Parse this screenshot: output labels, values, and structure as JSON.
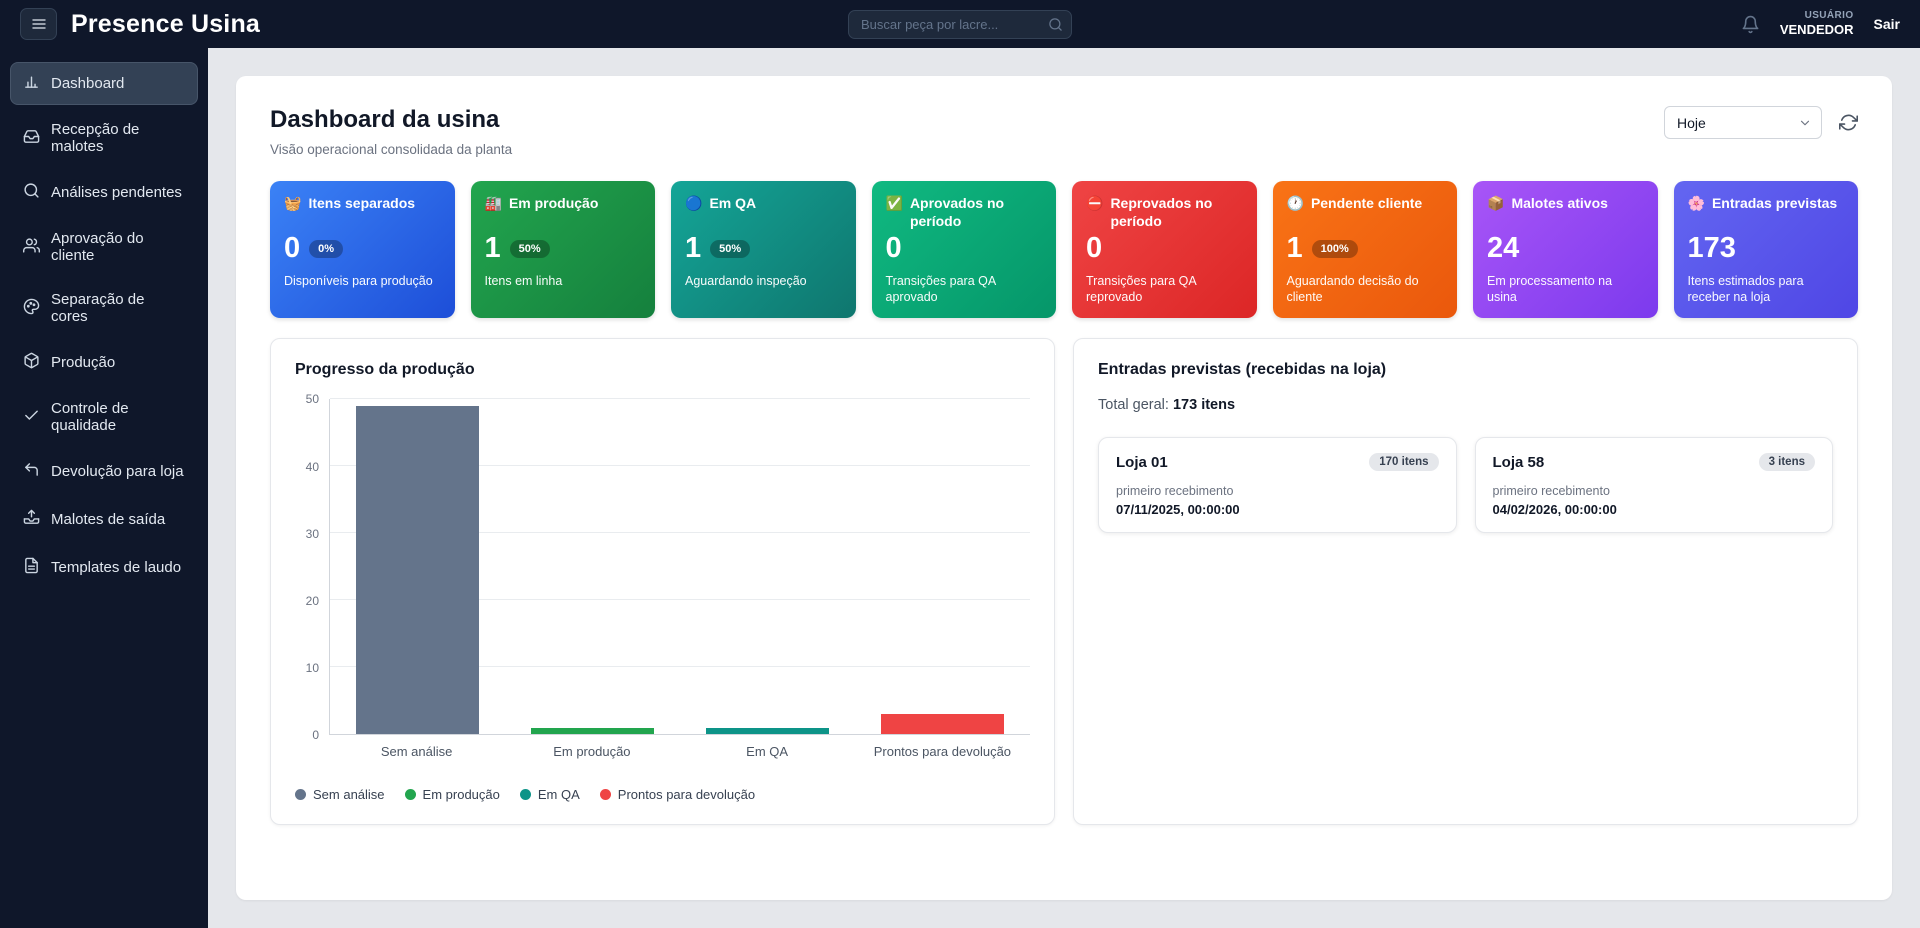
{
  "header": {
    "app_title": "Presence Usina",
    "search_placeholder": "Buscar peça por lacre...",
    "user_label": "USUÁRIO",
    "user_name": "VENDEDOR",
    "logout_label": "Sair"
  },
  "sidebar": {
    "items": [
      {
        "label": "Dashboard",
        "icon": "dashboard-icon",
        "active": true
      },
      {
        "label": "Recepção de malotes",
        "icon": "inbox-icon",
        "active": false
      },
      {
        "label": "Análises pendentes",
        "icon": "search-icon",
        "active": false
      },
      {
        "label": "Aprovação do cliente",
        "icon": "users-icon",
        "active": false
      },
      {
        "label": "Separação de cores",
        "icon": "palette-icon",
        "active": false
      },
      {
        "label": "Produção",
        "icon": "package-icon",
        "active": false
      },
      {
        "label": "Controle de qualidade",
        "icon": "check-icon",
        "active": false
      },
      {
        "label": "Devolução para loja",
        "icon": "return-icon",
        "active": false
      },
      {
        "label": "Malotes de saída",
        "icon": "outbox-icon",
        "active": false
      },
      {
        "label": "Templates de laudo",
        "icon": "document-icon",
        "active": false
      }
    ]
  },
  "main": {
    "title": "Dashboard da usina",
    "subtitle": "Visão operacional consolidada da planta",
    "period_select_value": "Hoje",
    "stat_cards": [
      {
        "icon": "🧺",
        "icon_name": "basket-icon",
        "label": "Itens separados",
        "value": "0",
        "badge": "0%",
        "description": "Disponíveis para produção",
        "color_from": "#3b82f6",
        "color_to": "#1d4ed8"
      },
      {
        "icon": "🏭",
        "icon_name": "factory-icon",
        "label": "Em produção",
        "value": "1",
        "badge": "50%",
        "description": "Itens em linha",
        "color_from": "#22a54e",
        "color_to": "#15803d"
      },
      {
        "icon": "🔵",
        "icon_name": "qa-circle-icon",
        "label": "Em QA",
        "value": "1",
        "badge": "50%",
        "description": "Aguardando inspeção",
        "color_from": "#14a597",
        "color_to": "#0f766e"
      },
      {
        "icon": "✅",
        "icon_name": "approved-check-icon",
        "label": "Aprovados no período",
        "value": "0",
        "badge": "",
        "description": "Transições para QA aprovado",
        "color_from": "#10b981",
        "color_to": "#059669"
      },
      {
        "icon": "⛔",
        "icon_name": "rejected-icon",
        "label": "Reprovados no período",
        "value": "0",
        "badge": "",
        "description": "Transições para QA reprovado",
        "color_from": "#ef4444",
        "color_to": "#dc2626"
      },
      {
        "icon": "🕐",
        "icon_name": "clock-icon",
        "label": "Pendente cliente",
        "value": "1",
        "badge": "100%",
        "description": "Aguardando decisão do cliente",
        "color_from": "#f97316",
        "color_to": "#ea580c"
      },
      {
        "icon": "📦",
        "icon_name": "package-icon",
        "label": "Malotes ativos",
        "value": "24",
        "badge": "",
        "description": "Em processamento na usina",
        "color_from": "#a855f7",
        "color_to": "#7c3aed"
      },
      {
        "icon": "🌸",
        "icon_name": "flower-icon",
        "label": "Entradas previstas",
        "value": "173",
        "badge": "",
        "description": "Itens estimados para receber na loja",
        "color_from": "#6366f1",
        "color_to": "#4f46e5"
      }
    ]
  },
  "chart_data": {
    "type": "bar",
    "title": "Progresso da produção",
    "categories": [
      "Sem análise",
      "Em produção",
      "Em QA",
      "Prontos para devolução"
    ],
    "values": [
      49,
      1,
      1,
      3
    ],
    "colors": [
      "#64748b",
      "#22a54e",
      "#0d9488",
      "#ef4444"
    ],
    "ylim": [
      0,
      50
    ],
    "yticks": [
      0,
      10,
      20,
      30,
      40,
      50
    ],
    "xlabel": "",
    "ylabel": "",
    "grid": true,
    "legend": [
      "Sem análise",
      "Em produção",
      "Em QA",
      "Prontos para devolução"
    ],
    "legend_position": "bottom-left"
  },
  "entries_panel": {
    "title": "Entradas previstas (recebidas na loja)",
    "total_label": "Total geral:",
    "total_value": "173 itens",
    "stores": [
      {
        "name": "Loja 01",
        "badge": "170 itens",
        "sub": "primeiro recebimento",
        "date": "07/11/2025, 00:00:00"
      },
      {
        "name": "Loja 58",
        "badge": "3 itens",
        "sub": "primeiro recebimento",
        "date": "04/02/2026, 00:00:00"
      }
    ]
  }
}
